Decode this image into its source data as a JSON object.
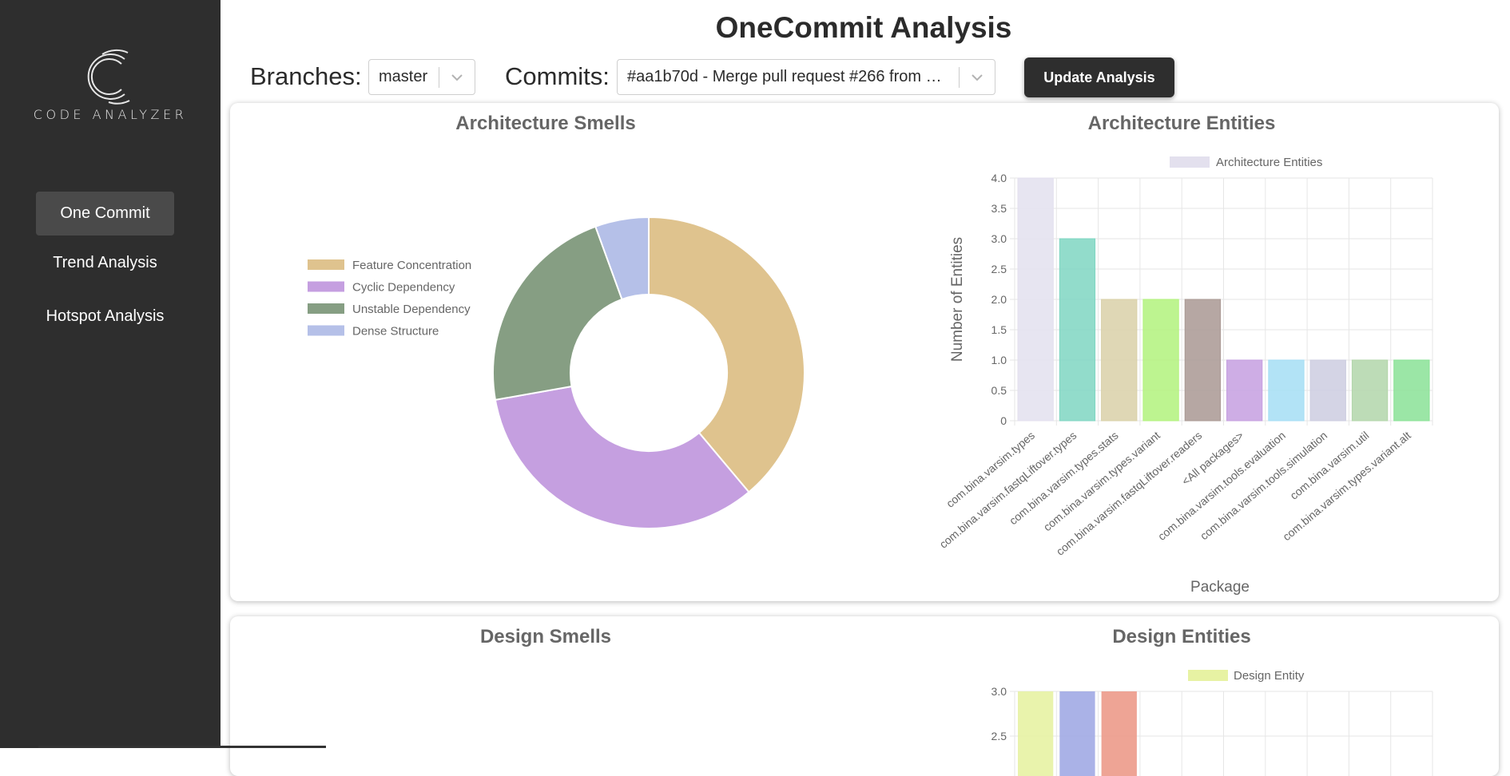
{
  "app": {
    "logo_text": "CODE ANALYZER"
  },
  "sidebar": {
    "items": [
      {
        "label": "One Commit",
        "active": true
      },
      {
        "label": "Trend Analysis",
        "active": false
      },
      {
        "label": "Hotspot Analysis",
        "active": false
      }
    ]
  },
  "header": {
    "title": "OneCommit Analysis",
    "branches_label": "Branches:",
    "branch_value": "master",
    "commits_label": "Commits:",
    "commit_value": "#aa1b70d - Merge pull request #266 from …",
    "update_button": "Update Analysis"
  },
  "colors": {
    "sidebar_bg": "#2e2e2e",
    "accent_dark": "#2e2e2e"
  },
  "panels": {
    "architecture_smells_title": "Architecture Smells",
    "architecture_entities_title": "Architecture Entities",
    "design_smells_title": "Design Smells",
    "design_entities_title": "Design Entities"
  },
  "chart_data": [
    {
      "type": "pie",
      "title": "Architecture Smells",
      "labels": [
        "Feature Concentration",
        "Cyclic Dependency",
        "Unstable Dependency",
        "Dense Structure"
      ],
      "values": [
        7,
        6,
        4,
        1
      ],
      "colors": [
        "#dfc38e",
        "#c59fe0",
        "#869e83",
        "#b5c0e8"
      ],
      "donut": true,
      "legend_position": "left"
    },
    {
      "type": "bar",
      "title": "Architecture Entities",
      "legend": [
        "Architecture Entities"
      ],
      "xlabel": "Package",
      "ylabel": "Number of Entities",
      "ylim": [
        0,
        4
      ],
      "yticks": [
        "0",
        "0.5",
        "1.0",
        "1.5",
        "2.0",
        "2.5",
        "3.0",
        "3.5",
        "4.0"
      ],
      "grid": true,
      "categories": [
        "com.bina.varsim.types",
        "com.bina.varsim.fastqLiftover.types",
        "com.bina.varsim.types.stats",
        "com.bina.varsim.types.variant",
        "com.bina.varsim.fastqLiftover.readers",
        "<All packages>",
        "com.bina.varsim.tools.evaluation",
        "com.bina.varsim.tools.simulation",
        "com.bina.varsim.util",
        "com.bina.varsim.types.variant.alt"
      ],
      "values": [
        4,
        3,
        2,
        2,
        2,
        1,
        1,
        1,
        1,
        1
      ],
      "colors": [
        "#e3e0ee",
        "#7fd6c2",
        "#d9d0a8",
        "#b2f27c",
        "#a99893",
        "#c59fe0",
        "#a5def4",
        "#cccde0",
        "#b2d6aa",
        "#89e296"
      ]
    },
    {
      "type": "pie",
      "title": "Design Smells",
      "labels": [],
      "values": []
    },
    {
      "type": "bar",
      "title": "Design Entities",
      "legend": [
        "Design Entity"
      ],
      "yticks": [
        "2.5",
        "3.0"
      ],
      "values": [
        3,
        3,
        3
      ],
      "colors": [
        "#e7f2a3",
        "#a1aae4",
        "#ec9a8a"
      ],
      "grid": true
    }
  ]
}
